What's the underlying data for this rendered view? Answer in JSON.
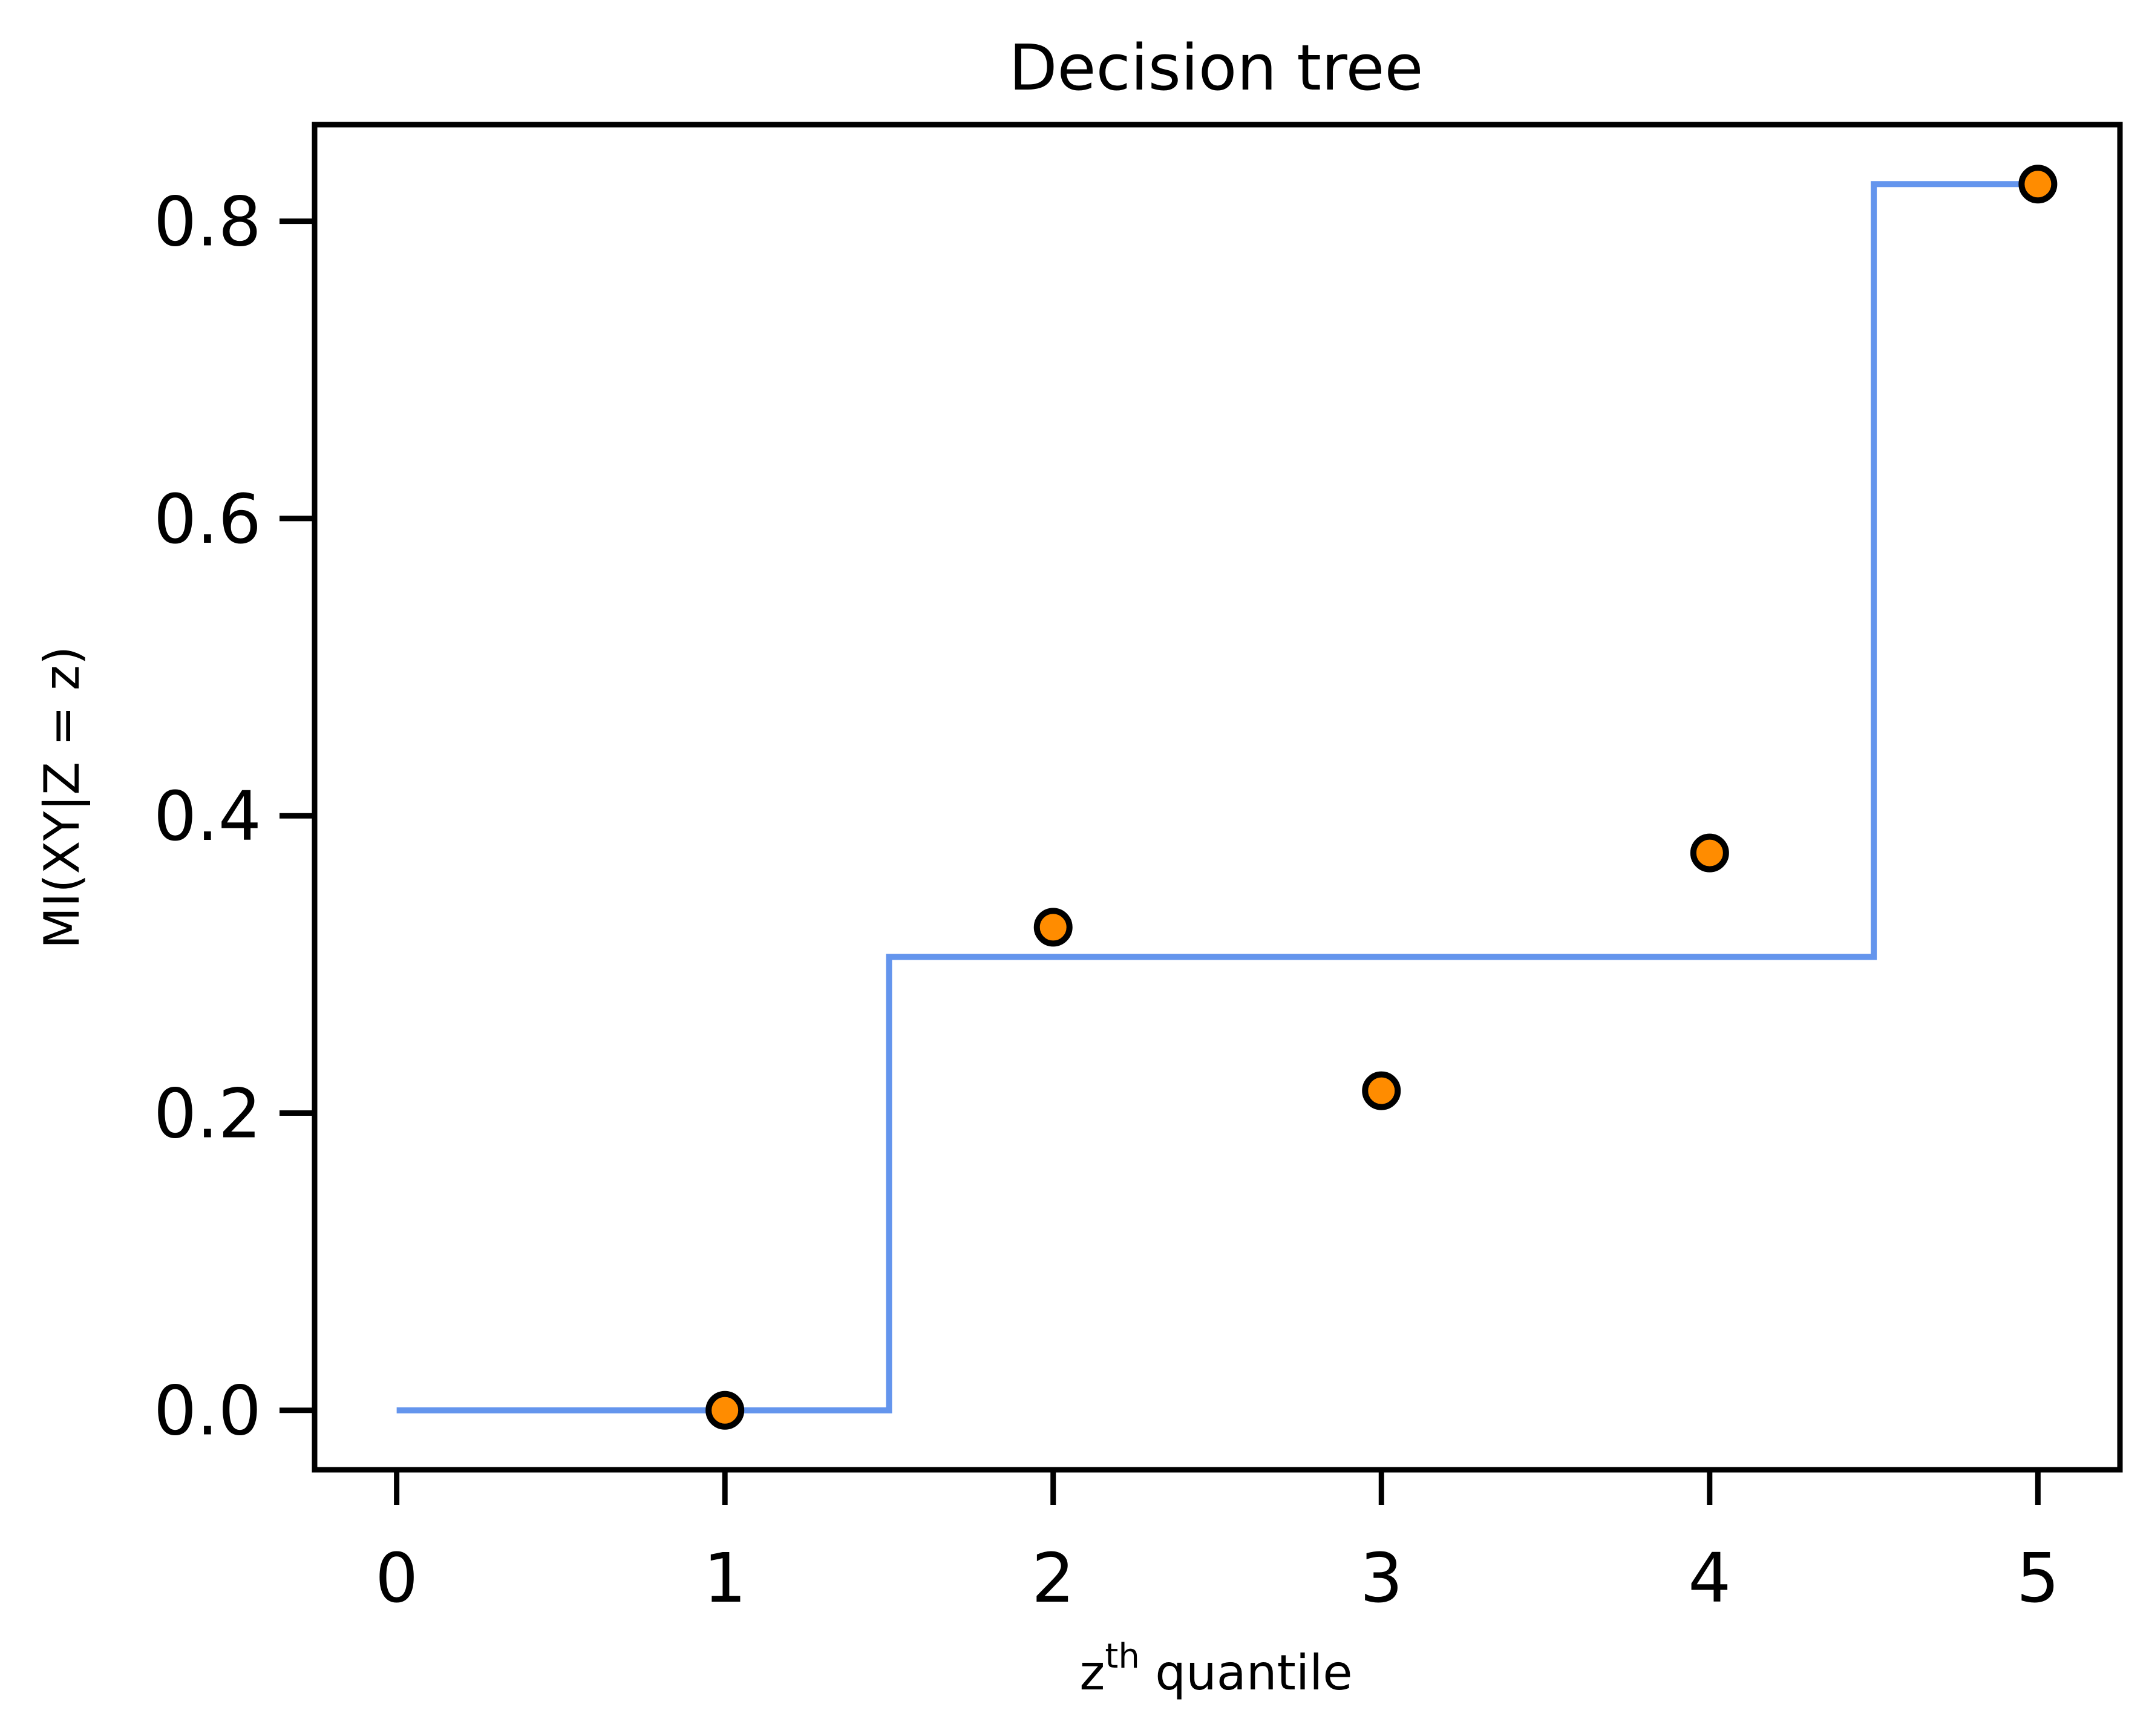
{
  "chart_data": {
    "type": "scatter",
    "title": "Decision tree",
    "xlabel": {
      "base": "z",
      "sup": "th",
      "rest": " quantile"
    },
    "ylabel": "MI(XY|Z = z)",
    "xlim": [
      -0.25,
      5.25
    ],
    "ylim": [
      -0.04,
      0.865
    ],
    "xticks": [
      0,
      1,
      2,
      3,
      4,
      5
    ],
    "xtick_labels": [
      "0",
      "1",
      "2",
      "3",
      "4",
      "5"
    ],
    "yticks": [
      0.0,
      0.2,
      0.4,
      0.6,
      0.8
    ],
    "ytick_labels": [
      "0.0",
      "0.2",
      "0.4",
      "0.6",
      "0.8"
    ],
    "grid": false,
    "series": [
      {
        "kind": "step",
        "color": "#6495ED",
        "x": [
          0,
          1.5,
          1.5,
          4.5,
          4.5,
          5
        ],
        "y": [
          0.0,
          0.0,
          0.305,
          0.305,
          0.825,
          0.825
        ]
      },
      {
        "kind": "scatter",
        "color": "#FF8C00",
        "edge_color": "#000000",
        "x": [
          1,
          2,
          3,
          4,
          5
        ],
        "y": [
          0.0,
          0.325,
          0.215,
          0.375,
          0.825
        ]
      }
    ]
  }
}
